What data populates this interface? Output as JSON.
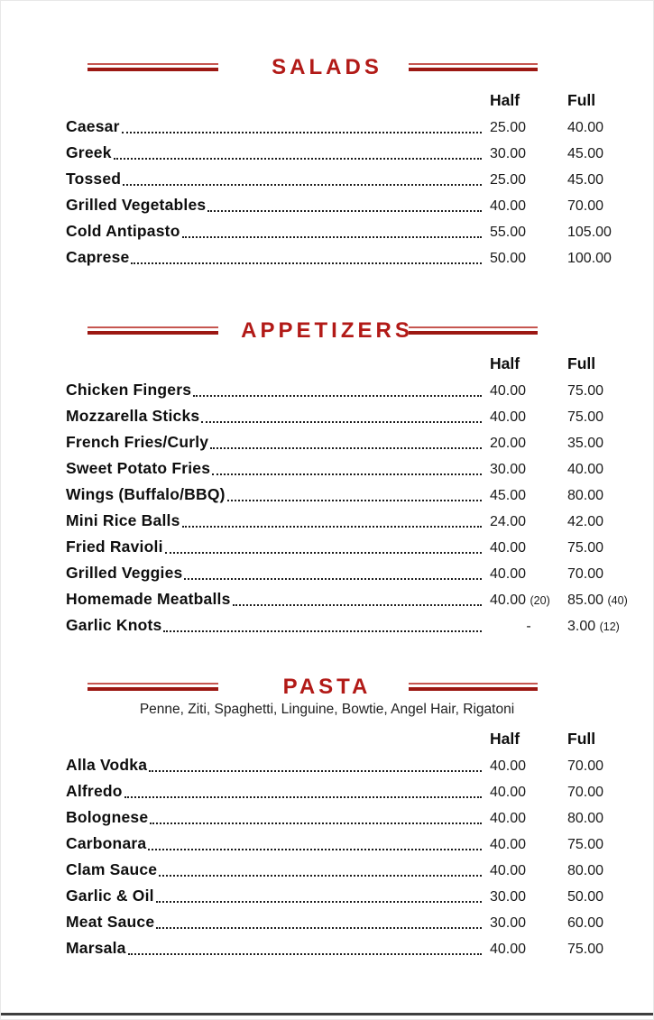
{
  "page": {
    "background": "#FFFFFF",
    "accent_red": "#B21A17",
    "ornament_dark_red": "#9C1813",
    "ornament_light_red": "#C65650",
    "footer_rule_color": "#3E3E3E",
    "leader_style": "dotted"
  },
  "columns": {
    "half_label": "Half",
    "full_label": "Full"
  },
  "sections": [
    {
      "title": "SALADS",
      "subtitle": "",
      "items": [
        {
          "name": "Caesar",
          "half": "25.00",
          "full": "40.00"
        },
        {
          "name": "Greek",
          "half": "30.00",
          "full": "45.00"
        },
        {
          "name": "Tossed",
          "half": "25.00",
          "full": "45.00"
        },
        {
          "name": "Grilled Vegetables",
          "half": "40.00",
          "full": "70.00"
        },
        {
          "name": "Cold Antipasto",
          "half": "55.00",
          "full": "105.00"
        },
        {
          "name": "Caprese",
          "half": "50.00",
          "full": "100.00"
        }
      ]
    },
    {
      "title": "APPETIZERS",
      "subtitle": "",
      "items": [
        {
          "name": "Chicken Fingers",
          "half": "40.00",
          "full": "75.00"
        },
        {
          "name": "Mozzarella Sticks",
          "half": "40.00",
          "full": "75.00"
        },
        {
          "name": "French Fries/Curly",
          "half": "20.00",
          "full": "35.00"
        },
        {
          "name": "Sweet Potato Fries",
          "half": "30.00",
          "full": "40.00"
        },
        {
          "name": "Wings (Buffalo/BBQ)",
          "half": "45.00",
          "full": "80.00"
        },
        {
          "name": "Mini Rice Balls",
          "half": "24.00",
          "full": "42.00"
        },
        {
          "name": "Fried Ravioli",
          "half": "40.00",
          "full": "75.00"
        },
        {
          "name": "Grilled Veggies",
          "half": "40.00",
          "full": "70.00"
        },
        {
          "name": "Homemade Meatballs",
          "half": "40.00",
          "half_note": "(20)",
          "full": "85.00",
          "full_note": "(40)"
        },
        {
          "name": "Garlic Knots",
          "half": "-",
          "full": "3.00",
          "full_note": "(12)"
        }
      ]
    },
    {
      "title": "PASTA",
      "subtitle": "Penne, Ziti, Spaghetti, Linguine, Bowtie, Angel Hair, Rigatoni",
      "items": [
        {
          "name": "Alla Vodka",
          "half": "40.00",
          "full": "70.00"
        },
        {
          "name": "Alfredo",
          "half": "40.00",
          "full": "70.00"
        },
        {
          "name": "Bolognese",
          "half": "40.00",
          "full": "80.00"
        },
        {
          "name": "Carbonara",
          "half": "40.00",
          "full": "75.00"
        },
        {
          "name": "Clam Sauce",
          "half": "40.00",
          "full": "80.00"
        },
        {
          "name": "Garlic & Oil",
          "half": "30.00",
          "full": "50.00"
        },
        {
          "name": "Meat Sauce",
          "half": "30.00",
          "full": "60.00"
        },
        {
          "name": "Marsala",
          "half": "40.00",
          "full": "75.00"
        }
      ]
    }
  ]
}
